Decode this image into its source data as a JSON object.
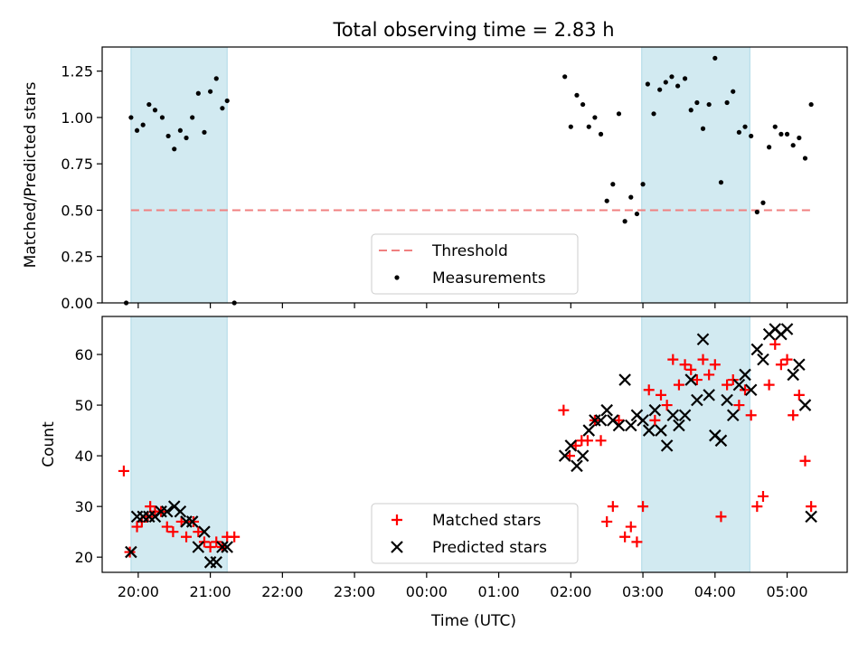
{
  "title": "Total observing time = 2.83 h",
  "xlabel": "Time (UTC)",
  "x_ticks": [
    "20:00",
    "21:00",
    "22:00",
    "23:00",
    "00:00",
    "01:00",
    "02:00",
    "03:00",
    "04:00",
    "05:00"
  ],
  "colors": {
    "shade": "#add8e6",
    "threshold": "#f08080",
    "matched": "#ff0000",
    "predicted": "#000000",
    "measurement": "#000000"
  },
  "chart_data": [
    {
      "type": "scatter",
      "ylabel": "Matched/Predicted stars",
      "xlim": [
        "19:30",
        "05:50"
      ],
      "ylim": [
        0,
        1.38
      ],
      "y_ticks": [
        "0.00",
        "0.25",
        "0.50",
        "0.75",
        "1.00",
        "1.25"
      ],
      "shaded_intervals": [
        [
          "19:54",
          "21:14"
        ],
        [
          "02:59",
          "04:29"
        ]
      ],
      "threshold": {
        "name": "Threshold",
        "value": 0.5,
        "x_range": [
          "19:54",
          "05:20"
        ]
      },
      "legend": {
        "position": "lower-center",
        "entries": [
          "Threshold",
          "Measurements"
        ]
      },
      "series": [
        {
          "name": "Measurements",
          "points": [
            [
              "19:50",
              0.0
            ],
            [
              "19:54",
              1.0
            ],
            [
              "19:59",
              0.93
            ],
            [
              "20:04",
              0.96
            ],
            [
              "20:09",
              1.07
            ],
            [
              "20:14",
              1.04
            ],
            [
              "20:20",
              1.0
            ],
            [
              "20:25",
              0.9
            ],
            [
              "20:30",
              0.83
            ],
            [
              "20:35",
              0.93
            ],
            [
              "20:40",
              0.89
            ],
            [
              "20:45",
              1.0
            ],
            [
              "20:50",
              1.13
            ],
            [
              "20:55",
              0.92
            ],
            [
              "21:00",
              1.14
            ],
            [
              "21:05",
              1.21
            ],
            [
              "21:10",
              1.05
            ],
            [
              "21:14",
              1.09
            ],
            [
              "21:20",
              0.0
            ],
            [
              "01:55",
              1.22
            ],
            [
              "02:00",
              0.95
            ],
            [
              "02:05",
              1.12
            ],
            [
              "02:10",
              1.07
            ],
            [
              "02:15",
              0.95
            ],
            [
              "02:20",
              1.0
            ],
            [
              "02:25",
              0.91
            ],
            [
              "02:30",
              0.55
            ],
            [
              "02:35",
              0.64
            ],
            [
              "02:40",
              1.02
            ],
            [
              "02:45",
              0.44
            ],
            [
              "02:50",
              0.57
            ],
            [
              "02:55",
              0.48
            ],
            [
              "03:00",
              0.64
            ],
            [
              "03:04",
              1.18
            ],
            [
              "03:09",
              1.02
            ],
            [
              "03:14",
              1.15
            ],
            [
              "03:19",
              1.19
            ],
            [
              "03:24",
              1.22
            ],
            [
              "03:29",
              1.17
            ],
            [
              "03:35",
              1.21
            ],
            [
              "03:40",
              1.04
            ],
            [
              "03:45",
              1.08
            ],
            [
              "03:50",
              0.94
            ],
            [
              "03:55",
              1.07
            ],
            [
              "04:00",
              1.32
            ],
            [
              "04:05",
              0.65
            ],
            [
              "04:10",
              1.08
            ],
            [
              "04:15",
              1.14
            ],
            [
              "04:20",
              0.92
            ],
            [
              "04:25",
              0.95
            ],
            [
              "04:30",
              0.9
            ],
            [
              "04:35",
              0.49
            ],
            [
              "04:40",
              0.54
            ],
            [
              "04:45",
              0.84
            ],
            [
              "04:50",
              0.95
            ],
            [
              "04:55",
              0.91
            ],
            [
              "05:00",
              0.91
            ],
            [
              "05:05",
              0.85
            ],
            [
              "05:10",
              0.89
            ],
            [
              "05:15",
              0.78
            ],
            [
              "05:20",
              1.07
            ]
          ]
        }
      ]
    },
    {
      "type": "scatter",
      "ylabel": "Count",
      "xlim": [
        "19:30",
        "05:50"
      ],
      "ylim": [
        17,
        67.5
      ],
      "y_ticks": [
        "20",
        "30",
        "40",
        "50",
        "60"
      ],
      "shaded_intervals": [
        [
          "19:54",
          "21:14"
        ],
        [
          "02:59",
          "04:29"
        ]
      ],
      "legend": {
        "position": "lower-center",
        "entries": [
          "Matched stars",
          "Predicted stars"
        ]
      },
      "series": [
        {
          "name": "Matched stars",
          "marker": "plus",
          "points": [
            [
              "19:48",
              37
            ],
            [
              "19:53",
              21
            ],
            [
              "19:59",
              26
            ],
            [
              "20:03",
              27
            ],
            [
              "20:08",
              28
            ],
            [
              "20:10",
              30
            ],
            [
              "20:14",
              29
            ],
            [
              "20:19",
              29
            ],
            [
              "20:24",
              26
            ],
            [
              "20:29",
              25
            ],
            [
              "20:36",
              27
            ],
            [
              "20:40",
              24
            ],
            [
              "20:46",
              27
            ],
            [
              "20:50",
              25
            ],
            [
              "20:55",
              23
            ],
            [
              "21:00",
              22
            ],
            [
              "21:05",
              23
            ],
            [
              "21:10",
              22
            ],
            [
              "21:14",
              24
            ],
            [
              "21:20",
              24
            ],
            [
              "01:54",
              49
            ],
            [
              "01:59",
              40
            ],
            [
              "02:04",
              42
            ],
            [
              "02:09",
              43
            ],
            [
              "02:14",
              43
            ],
            [
              "02:20",
              47
            ],
            [
              "02:25",
              43
            ],
            [
              "02:30",
              27
            ],
            [
              "02:35",
              30
            ],
            [
              "02:40",
              47
            ],
            [
              "02:45",
              24
            ],
            [
              "02:50",
              26
            ],
            [
              "02:55",
              23
            ],
            [
              "03:00",
              30
            ],
            [
              "03:05",
              53
            ],
            [
              "03:10",
              47
            ],
            [
              "03:15",
              52
            ],
            [
              "03:20",
              50
            ],
            [
              "03:25",
              59
            ],
            [
              "03:30",
              54
            ],
            [
              "03:35",
              58
            ],
            [
              "03:40",
              57
            ],
            [
              "03:45",
              55
            ],
            [
              "03:50",
              59
            ],
            [
              "03:55",
              56
            ],
            [
              "04:00",
              58
            ],
            [
              "04:05",
              28
            ],
            [
              "04:10",
              54
            ],
            [
              "04:15",
              55
            ],
            [
              "04:20",
              50
            ],
            [
              "04:25",
              53
            ],
            [
              "04:30",
              48
            ],
            [
              "04:35",
              30
            ],
            [
              "04:40",
              32
            ],
            [
              "04:45",
              54
            ],
            [
              "04:50",
              62
            ],
            [
              "04:55",
              58
            ],
            [
              "05:00",
              59
            ],
            [
              "05:05",
              48
            ],
            [
              "05:10",
              52
            ],
            [
              "05:15",
              39
            ],
            [
              "05:20",
              30
            ]
          ]
        },
        {
          "name": "Predicted stars",
          "marker": "x",
          "points": [
            [
              "19:54",
              21
            ],
            [
              "19:59",
              28
            ],
            [
              "20:04",
              28
            ],
            [
              "20:09",
              28
            ],
            [
              "20:14",
              28
            ],
            [
              "20:19",
              29
            ],
            [
              "20:24",
              29
            ],
            [
              "20:30",
              30
            ],
            [
              "20:35",
              29
            ],
            [
              "20:40",
              27
            ],
            [
              "20:45",
              27
            ],
            [
              "20:50",
              22
            ],
            [
              "20:55",
              25
            ],
            [
              "21:00",
              19
            ],
            [
              "21:05",
              19
            ],
            [
              "21:10",
              22
            ],
            [
              "21:14",
              22
            ],
            [
              "01:55",
              40
            ],
            [
              "02:00",
              42
            ],
            [
              "02:05",
              38
            ],
            [
              "02:10",
              40
            ],
            [
              "02:15",
              45
            ],
            [
              "02:20",
              47
            ],
            [
              "02:25",
              47
            ],
            [
              "02:30",
              49
            ],
            [
              "02:35",
              47
            ],
            [
              "02:40",
              46
            ],
            [
              "02:45",
              55
            ],
            [
              "02:50",
              46
            ],
            [
              "02:55",
              48
            ],
            [
              "03:00",
              47
            ],
            [
              "03:05",
              45
            ],
            [
              "03:10",
              49
            ],
            [
              "03:15",
              45
            ],
            [
              "03:20",
              42
            ],
            [
              "03:25",
              48
            ],
            [
              "03:30",
              46
            ],
            [
              "03:35",
              48
            ],
            [
              "03:40",
              55
            ],
            [
              "03:45",
              51
            ],
            [
              "03:50",
              63
            ],
            [
              "03:55",
              52
            ],
            [
              "04:00",
              44
            ],
            [
              "04:05",
              43
            ],
            [
              "04:10",
              51
            ],
            [
              "04:15",
              48
            ],
            [
              "04:20",
              54
            ],
            [
              "04:25",
              56
            ],
            [
              "04:30",
              53
            ],
            [
              "04:35",
              61
            ],
            [
              "04:40",
              59
            ],
            [
              "04:45",
              64
            ],
            [
              "04:50",
              65
            ],
            [
              "04:55",
              64
            ],
            [
              "05:00",
              65
            ],
            [
              "05:05",
              56
            ],
            [
              "05:10",
              58
            ],
            [
              "05:15",
              50
            ],
            [
              "05:20",
              28
            ]
          ]
        }
      ]
    }
  ]
}
